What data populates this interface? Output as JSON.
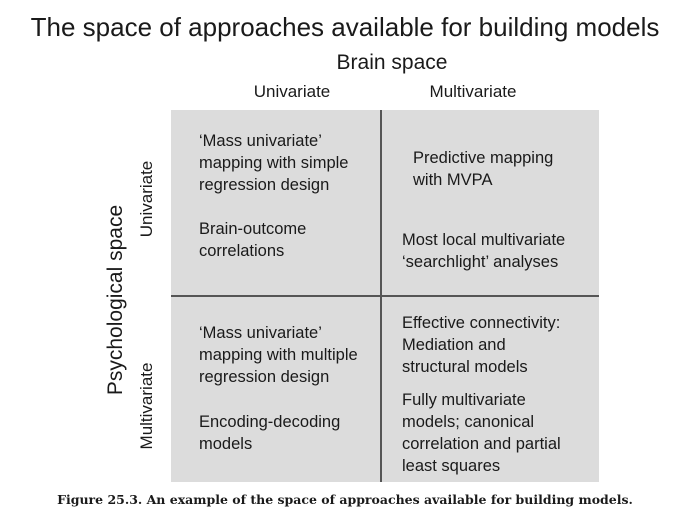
{
  "title": "The space of approaches available for building models",
  "brain_space_label": "Brain space",
  "columns": [
    "Univariate",
    "Multivariate"
  ],
  "psych_space_label": "Psychological space",
  "rows": [
    "Univariate",
    "Multivariate"
  ],
  "cells": {
    "uni_uni_1": [
      "‘Mass univariate’",
      "mapping with simple",
      "regression design"
    ],
    "uni_uni_2": [
      "Brain-outcome",
      "correlations"
    ],
    "uni_multi_1": [
      "Predictive mapping",
      "with MVPA"
    ],
    "uni_multi_2": [
      "Most local multivariate",
      "‘searchlight’ analyses"
    ],
    "multi_uni_1": [
      "‘Mass univariate’",
      "mapping with multiple",
      "regression design"
    ],
    "multi_uni_2": [
      "Encoding-decoding",
      "models"
    ],
    "multi_multi_1": [
      "Effective connectivity:",
      "Mediation and",
      "structural models"
    ],
    "multi_multi_2": [
      "Fully multivariate",
      "models; canonical",
      "correlation and partial",
      "least squares"
    ]
  },
  "caption": "Figure 25.3. An example of the space of approaches available for building models.",
  "colors": {
    "grid_fill": "#dcdcdc",
    "divider": "#555555",
    "text": "#1a1a1a"
  }
}
